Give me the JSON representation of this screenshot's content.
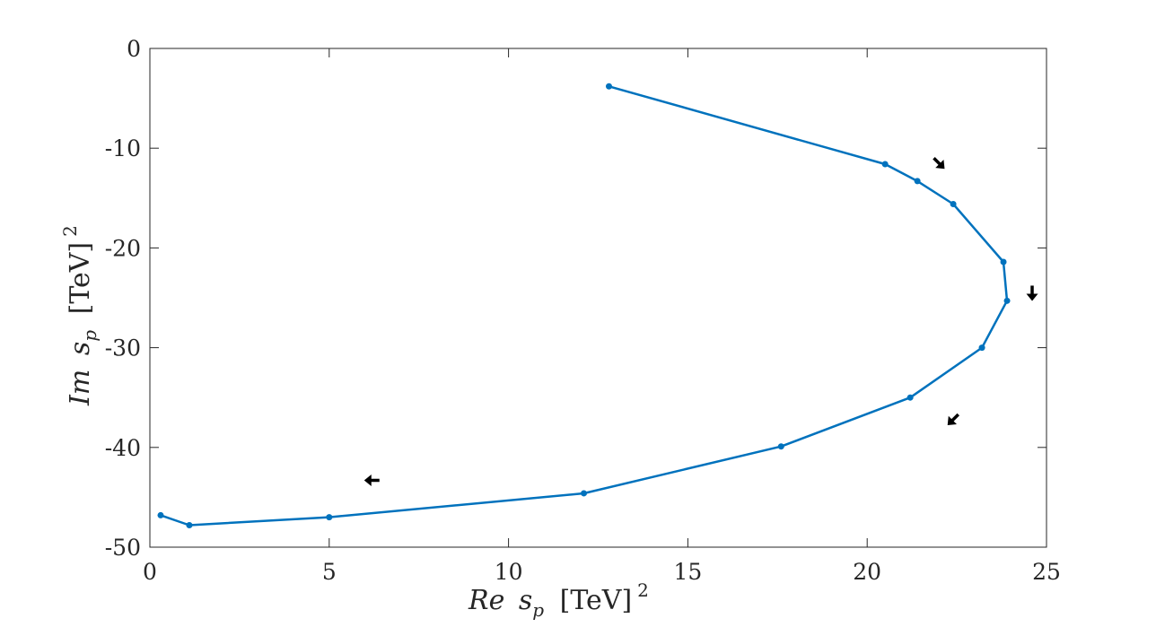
{
  "chart_data": {
    "type": "line",
    "title": "",
    "xlabel": {
      "prefix": "Re",
      "var": "s",
      "sub": "p",
      "unit": "[TeV]",
      "sup": "2"
    },
    "ylabel": {
      "prefix": "Im",
      "var": "s",
      "sub": "p",
      "unit": "[TeV]",
      "sup": "2"
    },
    "xlim": [
      0,
      25
    ],
    "ylim": [
      -50,
      0
    ],
    "xticks": [
      0,
      5,
      10,
      15,
      20,
      25
    ],
    "yticks": [
      0,
      -10,
      -20,
      -30,
      -40,
      -50
    ],
    "grid": false,
    "series": [
      {
        "color": "#0072BD",
        "marker": "dot",
        "x": [
          12.8,
          20.5,
          21.4,
          22.4,
          23.8,
          23.9,
          23.2,
          21.2,
          17.6,
          12.1,
          5.0,
          1.1,
          0.3
        ],
        "y": [
          -3.8,
          -11.6,
          -13.3,
          -15.6,
          -21.4,
          -25.3,
          -30.0,
          -35.0,
          -39.9,
          -44.6,
          -47.0,
          -47.8,
          -46.8
        ]
      }
    ],
    "arrows": [
      {
        "x": 22.0,
        "y": -11.5,
        "direction": "down-right"
      },
      {
        "x": 24.6,
        "y": -24.5,
        "direction": "down"
      },
      {
        "x": 22.4,
        "y": -37.2,
        "direction": "down-left"
      },
      {
        "x": 6.2,
        "y": -43.3,
        "direction": "left"
      }
    ]
  }
}
